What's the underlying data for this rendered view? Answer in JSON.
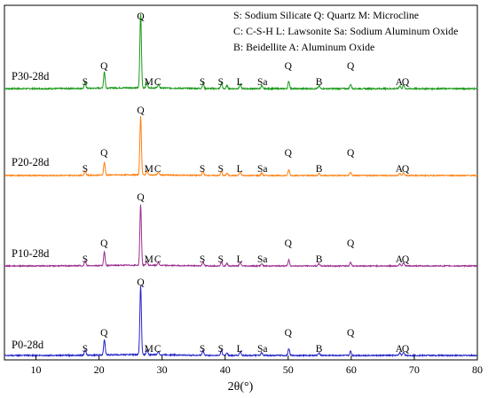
{
  "chart_data": {
    "type": "line",
    "xlabel": "2θ(°)",
    "xlim": [
      5,
      80
    ],
    "xticks": [
      10,
      20,
      30,
      40,
      50,
      60,
      70,
      80
    ],
    "ylabel": "",
    "grid": false,
    "legend": {
      "placement": "top-right",
      "lines": [
        "S: Sodium Silicate   Q: Quartz   M: Microcline",
        "C: C-S-H   L: Lawsonite   Sa: Sodium Aluminum Oxide",
        "B: Beidellite   A: Aluminum Oxide"
      ]
    },
    "peaks": [
      {
        "pos": 17.8,
        "height": 0.08
      },
      {
        "pos": 20.85,
        "height": 0.22
      },
      {
        "pos": 26.6,
        "height": 1.0
      },
      {
        "pos": 27.6,
        "height": 0.07
      },
      {
        "pos": 29.4,
        "height": 0.05
      },
      {
        "pos": 36.5,
        "height": 0.07
      },
      {
        "pos": 39.4,
        "height": 0.07
      },
      {
        "pos": 40.3,
        "height": 0.04
      },
      {
        "pos": 42.4,
        "height": 0.06
      },
      {
        "pos": 45.8,
        "height": 0.04
      },
      {
        "pos": 50.1,
        "height": 0.1
      },
      {
        "pos": 54.9,
        "height": 0.04
      },
      {
        "pos": 59.9,
        "height": 0.06
      },
      {
        "pos": 67.7,
        "height": 0.04
      },
      {
        "pos": 68.3,
        "height": 0.05
      }
    ],
    "peak_labels": [
      {
        "text": "S",
        "x": 17.8
      },
      {
        "text": "Q",
        "x": 20.8
      },
      {
        "text": "Q",
        "x": 26.6
      },
      {
        "text": "M",
        "x": 27.9
      },
      {
        "text": "C",
        "x": 29.3
      },
      {
        "text": "S",
        "x": 36.4
      },
      {
        "text": "S",
        "x": 39.3
      },
      {
        "text": "L",
        "x": 42.3
      },
      {
        "text": "Sa",
        "x": 45.9
      },
      {
        "text": "Q",
        "x": 50.0
      },
      {
        "text": "B",
        "x": 54.9
      },
      {
        "text": "Q",
        "x": 59.9
      },
      {
        "text": "A",
        "x": 67.6
      },
      {
        "text": "Q",
        "x": 68.6
      }
    ],
    "series": [
      {
        "name": "P30-28d",
        "color": "#1a9a1a"
      },
      {
        "name": "P20-28d",
        "color": "#ff7f0e"
      },
      {
        "name": "P10-28d",
        "color": "#9b2d8f"
      },
      {
        "name": "P0-28d",
        "color": "#2323c8"
      }
    ]
  }
}
